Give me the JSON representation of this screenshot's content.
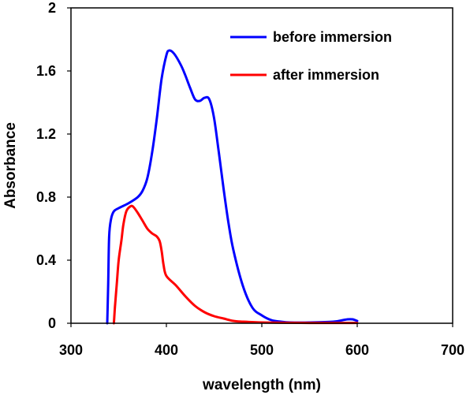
{
  "chart_data": {
    "type": "line",
    "title": "",
    "xlabel": "wavelength (nm)",
    "ylabel": "Absorbance",
    "xlim": [
      300,
      700
    ],
    "ylim": [
      0,
      2
    ],
    "xticks": [
      "300",
      "400",
      "500",
      "600",
      "700"
    ],
    "yticks": [
      "0",
      "0.4",
      "0.8",
      "1.2",
      "1.6",
      "2"
    ],
    "grid": false,
    "legend_position": "top-right",
    "series": [
      {
        "name": "before immersion",
        "color": "#0000ff",
        "points": [
          [
            338,
            0
          ],
          [
            339,
            0.25
          ],
          [
            340,
            0.55
          ],
          [
            342,
            0.66
          ],
          [
            345,
            0.71
          ],
          [
            350,
            0.73
          ],
          [
            360,
            0.76
          ],
          [
            370,
            0.8
          ],
          [
            375,
            0.84
          ],
          [
            380,
            0.92
          ],
          [
            385,
            1.08
          ],
          [
            390,
            1.3
          ],
          [
            395,
            1.55
          ],
          [
            400,
            1.7
          ],
          [
            403,
            1.73
          ],
          [
            408,
            1.71
          ],
          [
            415,
            1.64
          ],
          [
            420,
            1.57
          ],
          [
            425,
            1.49
          ],
          [
            430,
            1.42
          ],
          [
            435,
            1.41
          ],
          [
            440,
            1.43
          ],
          [
            445,
            1.42
          ],
          [
            450,
            1.3
          ],
          [
            455,
            1.08
          ],
          [
            460,
            0.85
          ],
          [
            465,
            0.64
          ],
          [
            470,
            0.47
          ],
          [
            480,
            0.24
          ],
          [
            490,
            0.1
          ],
          [
            500,
            0.05
          ],
          [
            510,
            0.02
          ],
          [
            520,
            0.01
          ],
          [
            530,
            0.005
          ],
          [
            550,
            0.005
          ],
          [
            575,
            0.01
          ],
          [
            585,
            0.02
          ],
          [
            590,
            0.025
          ],
          [
            595,
            0.025
          ],
          [
            600,
            0.015
          ]
        ]
      },
      {
        "name": "after immersion",
        "color": "#ff0000",
        "points": [
          [
            345,
            0
          ],
          [
            346,
            0.1
          ],
          [
            348,
            0.25
          ],
          [
            350,
            0.4
          ],
          [
            353,
            0.53
          ],
          [
            355,
            0.63
          ],
          [
            358,
            0.71
          ],
          [
            362,
            0.74
          ],
          [
            365,
            0.74
          ],
          [
            370,
            0.7
          ],
          [
            375,
            0.65
          ],
          [
            380,
            0.6
          ],
          [
            385,
            0.57
          ],
          [
            390,
            0.55
          ],
          [
            393,
            0.52
          ],
          [
            395,
            0.46
          ],
          [
            397,
            0.37
          ],
          [
            400,
            0.3
          ],
          [
            410,
            0.24
          ],
          [
            420,
            0.17
          ],
          [
            430,
            0.11
          ],
          [
            440,
            0.07
          ],
          [
            450,
            0.045
          ],
          [
            460,
            0.03
          ],
          [
            470,
            0.015
          ],
          [
            480,
            0.01
          ],
          [
            500,
            0.005
          ],
          [
            520,
            0.003
          ],
          [
            550,
            0.002
          ],
          [
            600,
            0.002
          ]
        ]
      }
    ]
  }
}
